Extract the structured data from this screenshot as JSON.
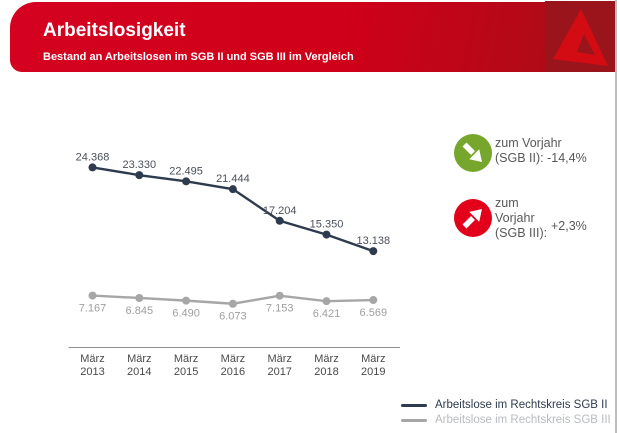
{
  "header": {
    "title": "Arbeitslosigkeit",
    "subtitle": "Bestand an Arbeitslosen im SGB II und SGB III im Vergleich"
  },
  "logo": {
    "icon": "bundesagentur-fuer-arbeit-a-icon",
    "square_color": "#9a151b",
    "glyph_color": "#d30b12"
  },
  "indicators": [
    {
      "icon": "arrow-down-right-icon",
      "circle_color": "#76a72c",
      "text": "zum Vorjahr\n(SGB II): -14,4%"
    },
    {
      "icon": "arrow-up-right-icon",
      "circle_color": "#e2001a",
      "text": "zum\nVorjahr\n(SGB III):",
      "value": "+2,3%"
    }
  ],
  "chart_data": {
    "type": "line",
    "categories": [
      "März 2013",
      "März 2014",
      "März 2015",
      "März 2016",
      "März 2017",
      "März 2018",
      "März 2019"
    ],
    "series": [
      {
        "name": "Arbeitslose im Rechtskreis SGB II",
        "color": "#2e3b4e",
        "label_color": "#4a505a",
        "values": [
          24368,
          23330,
          22495,
          21444,
          17204,
          15350,
          13138
        ],
        "labels": [
          "24.368",
          "23.330",
          "22.495",
          "21.444",
          "17.204",
          "15.350",
          "13.138"
        ]
      },
      {
        "name": "Arbeitslose im Rechtskreis SGB III",
        "color": "#a6a6a6",
        "label_color": "#9e9e9e",
        "values": [
          7167,
          6845,
          6490,
          6073,
          7153,
          6421,
          6569
        ],
        "labels": [
          "7.167",
          "6.845",
          "6.490",
          "6.073",
          "7.153",
          "6.421",
          "6.569"
        ]
      }
    ],
    "title": "Arbeitslosigkeit",
    "xlabel": "",
    "ylabel": "",
    "ylim": [
      0,
      26000
    ],
    "grid": false,
    "legend_position": "bottom-right",
    "tick_color": "#4a4a4a"
  }
}
